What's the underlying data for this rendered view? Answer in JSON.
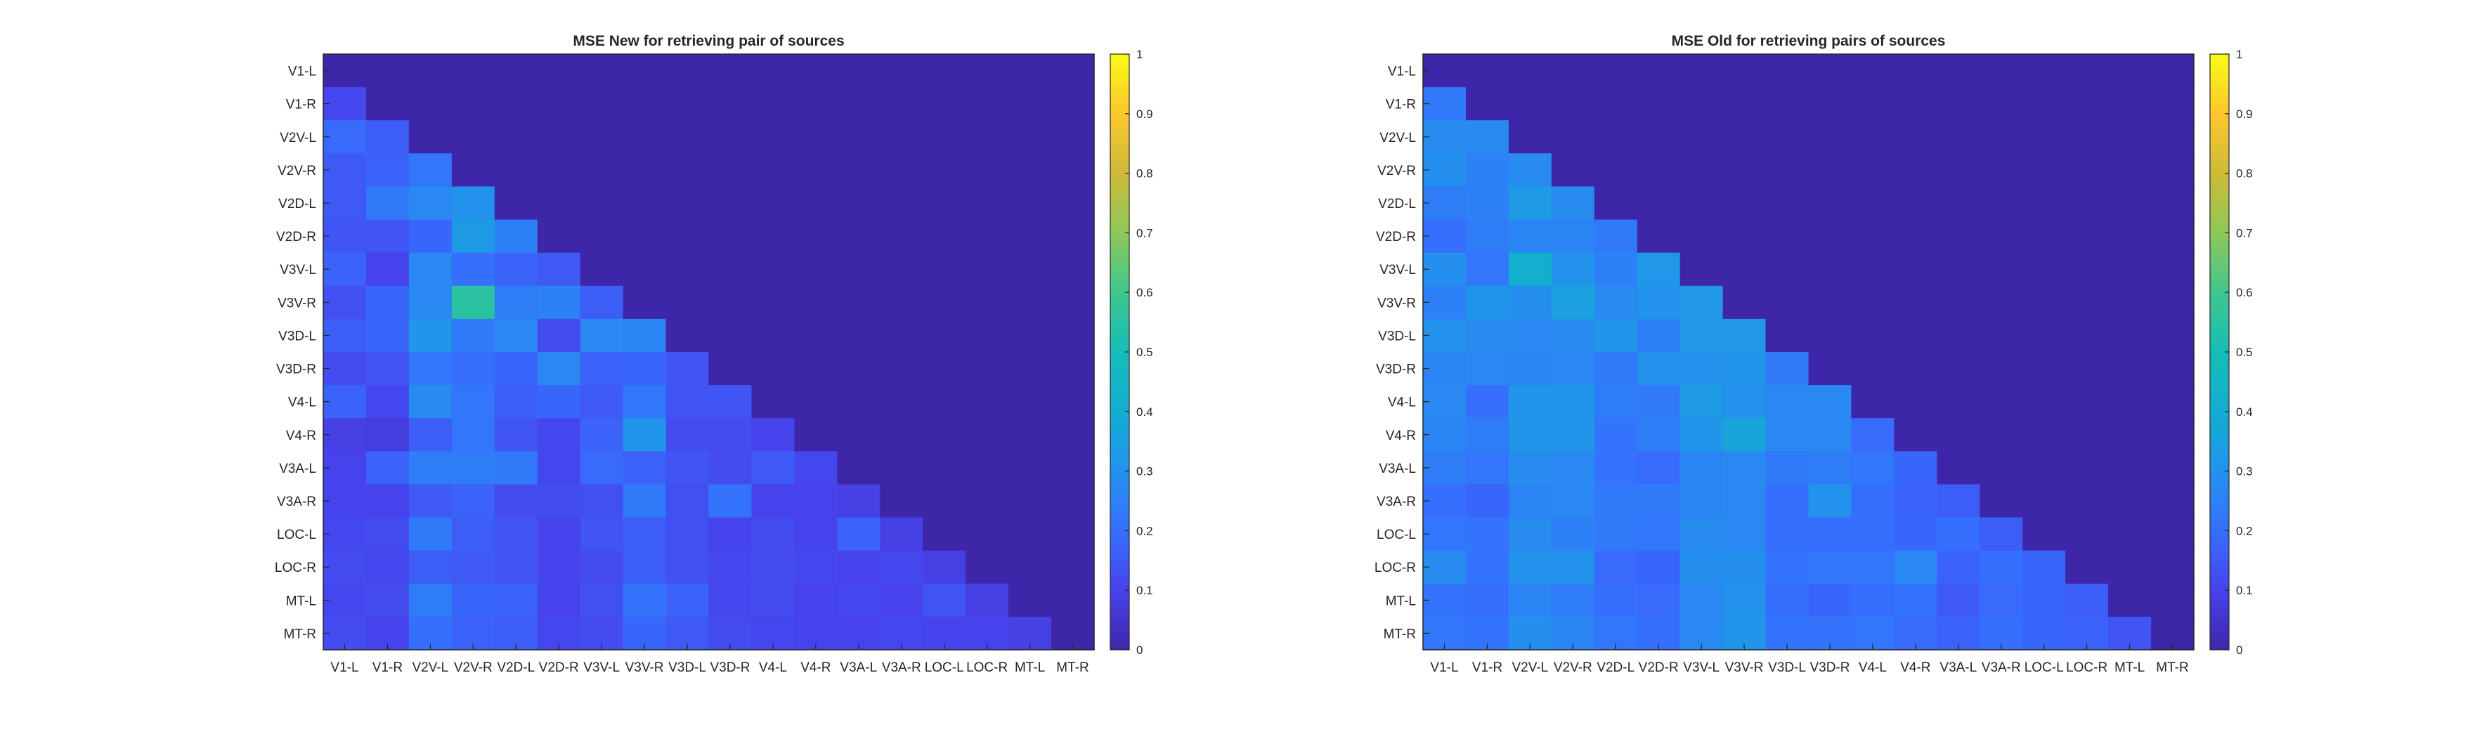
{
  "chart_data": [
    {
      "type": "heatmap",
      "title": "MSE New for retrieving pair of sources",
      "labels": [
        "V1-L",
        "V1-R",
        "V2V-L",
        "V2V-R",
        "V2D-L",
        "V2D-R",
        "V3V-L",
        "V3V-R",
        "V3D-L",
        "V3D-R",
        "V4-L",
        "V4-R",
        "V3A-L",
        "V3A-R",
        "LOC-L",
        "LOC-R",
        "MT-L",
        "MT-R"
      ],
      "clim": [
        0,
        1
      ],
      "colorbar_ticks": [
        0,
        0.1,
        0.2,
        0.3,
        0.4,
        0.5,
        0.6,
        0.7,
        0.8,
        0.9,
        1
      ],
      "colormap": "parula",
      "matrix": [
        [
          0,
          0,
          0,
          0,
          0,
          0,
          0,
          0,
          0,
          0,
          0,
          0,
          0,
          0,
          0,
          0,
          0,
          0
        ],
        [
          0.11,
          0,
          0,
          0,
          0,
          0,
          0,
          0,
          0,
          0,
          0,
          0,
          0,
          0,
          0,
          0,
          0,
          0
        ],
        [
          0.19,
          0.16,
          0,
          0,
          0,
          0,
          0,
          0,
          0,
          0,
          0,
          0,
          0,
          0,
          0,
          0,
          0,
          0
        ],
        [
          0.15,
          0.17,
          0.22,
          0,
          0,
          0,
          0,
          0,
          0,
          0,
          0,
          0,
          0,
          0,
          0,
          0,
          0,
          0
        ],
        [
          0.15,
          0.23,
          0.27,
          0.3,
          0,
          0,
          0,
          0,
          0,
          0,
          0,
          0,
          0,
          0,
          0,
          0,
          0,
          0
        ],
        [
          0.14,
          0.14,
          0.18,
          0.33,
          0.25,
          0,
          0,
          0,
          0,
          0,
          0,
          0,
          0,
          0,
          0,
          0,
          0,
          0
        ],
        [
          0.17,
          0.1,
          0.27,
          0.2,
          0.17,
          0.15,
          0,
          0,
          0,
          0,
          0,
          0,
          0,
          0,
          0,
          0,
          0,
          0
        ],
        [
          0.13,
          0.18,
          0.27,
          0.55,
          0.24,
          0.25,
          0.16,
          0,
          0,
          0,
          0,
          0,
          0,
          0,
          0,
          0,
          0,
          0
        ],
        [
          0.16,
          0.18,
          0.31,
          0.23,
          0.27,
          0.12,
          0.27,
          0.26,
          0,
          0,
          0,
          0,
          0,
          0,
          0,
          0,
          0,
          0
        ],
        [
          0.12,
          0.14,
          0.22,
          0.2,
          0.18,
          0.27,
          0.17,
          0.18,
          0.14,
          0,
          0,
          0,
          0,
          0,
          0,
          0,
          0,
          0
        ],
        [
          0.17,
          0.11,
          0.28,
          0.22,
          0.16,
          0.18,
          0.15,
          0.22,
          0.14,
          0.14,
          0,
          0,
          0,
          0,
          0,
          0,
          0,
          0
        ],
        [
          0.09,
          0.08,
          0.16,
          0.22,
          0.14,
          0.11,
          0.17,
          0.31,
          0.12,
          0.12,
          0.1,
          0,
          0,
          0,
          0,
          0,
          0,
          0
        ],
        [
          0.1,
          0.17,
          0.24,
          0.24,
          0.23,
          0.11,
          0.19,
          0.17,
          0.14,
          0.12,
          0.15,
          0.11,
          0,
          0,
          0,
          0,
          0,
          0
        ],
        [
          0.1,
          0.1,
          0.15,
          0.17,
          0.12,
          0.12,
          0.13,
          0.23,
          0.13,
          0.21,
          0.1,
          0.1,
          0.09,
          0,
          0,
          0,
          0,
          0
        ],
        [
          0.11,
          0.12,
          0.23,
          0.16,
          0.14,
          0.1,
          0.14,
          0.16,
          0.13,
          0.1,
          0.12,
          0.1,
          0.17,
          0.09,
          0,
          0,
          0,
          0
        ],
        [
          0.12,
          0.11,
          0.16,
          0.15,
          0.14,
          0.1,
          0.12,
          0.16,
          0.13,
          0.11,
          0.12,
          0.11,
          0.1,
          0.11,
          0.09,
          0,
          0,
          0
        ],
        [
          0.11,
          0.12,
          0.24,
          0.18,
          0.17,
          0.1,
          0.13,
          0.21,
          0.17,
          0.11,
          0.12,
          0.1,
          0.11,
          0.1,
          0.14,
          0.09,
          0,
          0
        ],
        [
          0.12,
          0.1,
          0.2,
          0.17,
          0.16,
          0.11,
          0.12,
          0.18,
          0.15,
          0.12,
          0.11,
          0.1,
          0.1,
          0.11,
          0.1,
          0.1,
          0.09,
          0
        ]
      ]
    },
    {
      "type": "heatmap",
      "title": "MSE Old for retrieving pairs of sources",
      "labels": [
        "V1-L",
        "V1-R",
        "V2V-L",
        "V2V-R",
        "V2D-L",
        "V2D-R",
        "V3V-L",
        "V3V-R",
        "V3D-L",
        "V3D-R",
        "V4-L",
        "V4-R",
        "V3A-L",
        "V3A-R",
        "LOC-L",
        "LOC-R",
        "MT-L",
        "MT-R"
      ],
      "clim": [
        0,
        1
      ],
      "colorbar_ticks": [
        0,
        0.1,
        0.2,
        0.3,
        0.4,
        0.5,
        0.6,
        0.7,
        0.8,
        0.9,
        1
      ],
      "colormap": "parula",
      "matrix": [
        [
          0,
          0,
          0,
          0,
          0,
          0,
          0,
          0,
          0,
          0,
          0,
          0,
          0,
          0,
          0,
          0,
          0,
          0
        ],
        [
          0.23,
          0,
          0,
          0,
          0,
          0,
          0,
          0,
          0,
          0,
          0,
          0,
          0,
          0,
          0,
          0,
          0,
          0
        ],
        [
          0.28,
          0.28,
          0,
          0,
          0,
          0,
          0,
          0,
          0,
          0,
          0,
          0,
          0,
          0,
          0,
          0,
          0,
          0
        ],
        [
          0.29,
          0.25,
          0.28,
          0,
          0,
          0,
          0,
          0,
          0,
          0,
          0,
          0,
          0,
          0,
          0,
          0,
          0,
          0
        ],
        [
          0.24,
          0.25,
          0.33,
          0.28,
          0,
          0,
          0,
          0,
          0,
          0,
          0,
          0,
          0,
          0,
          0,
          0,
          0,
          0
        ],
        [
          0.2,
          0.24,
          0.26,
          0.26,
          0.23,
          0,
          0,
          0,
          0,
          0,
          0,
          0,
          0,
          0,
          0,
          0,
          0,
          0
        ],
        [
          0.29,
          0.22,
          0.41,
          0.3,
          0.25,
          0.32,
          0,
          0,
          0,
          0,
          0,
          0,
          0,
          0,
          0,
          0,
          0,
          0
        ],
        [
          0.25,
          0.31,
          0.29,
          0.35,
          0.28,
          0.3,
          0.32,
          0,
          0,
          0,
          0,
          0,
          0,
          0,
          0,
          0,
          0,
          0
        ],
        [
          0.3,
          0.28,
          0.27,
          0.28,
          0.31,
          0.25,
          0.32,
          0.32,
          0,
          0,
          0,
          0,
          0,
          0,
          0,
          0,
          0,
          0
        ],
        [
          0.26,
          0.27,
          0.26,
          0.27,
          0.23,
          0.3,
          0.3,
          0.31,
          0.23,
          0,
          0,
          0,
          0,
          0,
          0,
          0,
          0,
          0
        ],
        [
          0.27,
          0.2,
          0.31,
          0.31,
          0.24,
          0.23,
          0.33,
          0.3,
          0.27,
          0.27,
          0,
          0,
          0,
          0,
          0,
          0,
          0,
          0
        ],
        [
          0.26,
          0.24,
          0.31,
          0.31,
          0.21,
          0.24,
          0.31,
          0.37,
          0.27,
          0.27,
          0.19,
          0,
          0,
          0,
          0,
          0,
          0,
          0
        ],
        [
          0.24,
          0.22,
          0.28,
          0.27,
          0.21,
          0.19,
          0.26,
          0.27,
          0.23,
          0.24,
          0.22,
          0.18,
          0,
          0,
          0,
          0,
          0,
          0
        ],
        [
          0.2,
          0.18,
          0.26,
          0.27,
          0.23,
          0.23,
          0.26,
          0.27,
          0.2,
          0.3,
          0.2,
          0.17,
          0.16,
          0,
          0,
          0,
          0,
          0
        ],
        [
          0.22,
          0.21,
          0.28,
          0.25,
          0.23,
          0.22,
          0.28,
          0.27,
          0.2,
          0.2,
          0.2,
          0.18,
          0.2,
          0.16,
          0,
          0,
          0,
          0
        ],
        [
          0.28,
          0.21,
          0.3,
          0.3,
          0.19,
          0.18,
          0.29,
          0.29,
          0.21,
          0.22,
          0.22,
          0.27,
          0.17,
          0.2,
          0.18,
          0,
          0,
          0
        ],
        [
          0.21,
          0.2,
          0.26,
          0.24,
          0.2,
          0.19,
          0.27,
          0.3,
          0.2,
          0.18,
          0.2,
          0.21,
          0.15,
          0.19,
          0.18,
          0.16,
          0,
          0
        ],
        [
          0.22,
          0.21,
          0.29,
          0.26,
          0.22,
          0.2,
          0.27,
          0.31,
          0.21,
          0.21,
          0.22,
          0.19,
          0.17,
          0.2,
          0.18,
          0.17,
          0.14,
          0
        ]
      ]
    }
  ]
}
